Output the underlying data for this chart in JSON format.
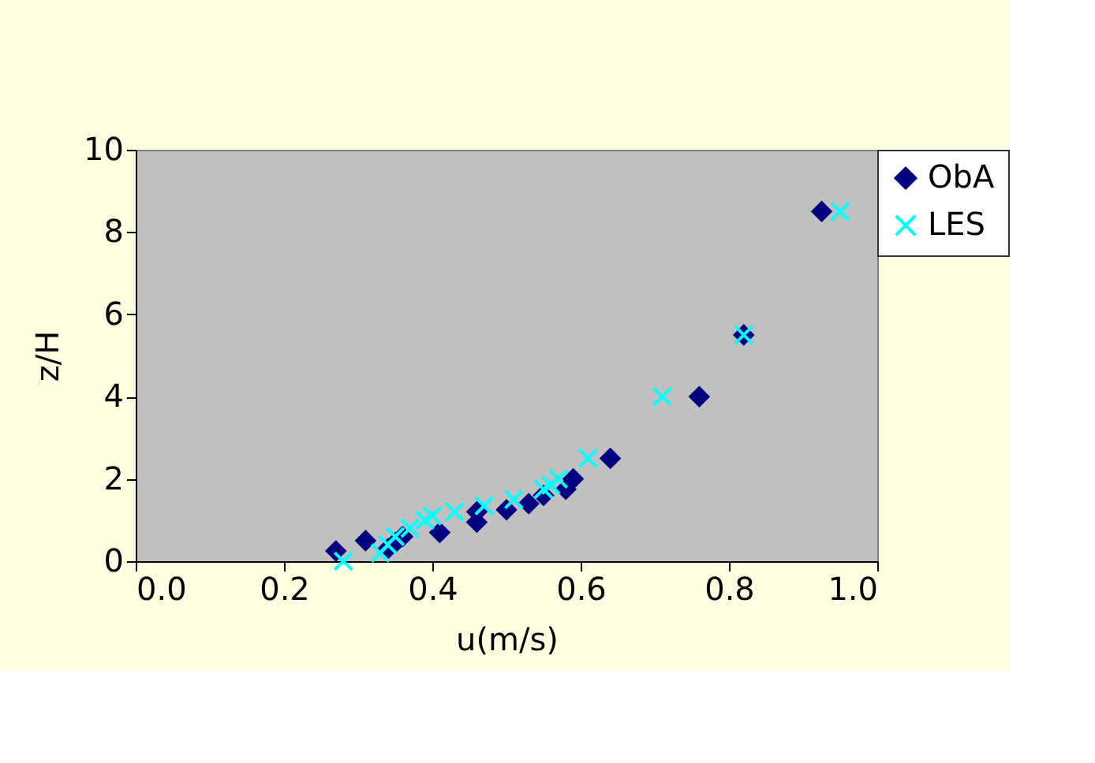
{
  "chart_data": {
    "type": "scatter",
    "xlabel": "u(m/s)",
    "ylabel": "z/H",
    "xlim": [
      0,
      1
    ],
    "xticks": [
      {
        "value": 0,
        "label": "0.0"
      },
      0.2,
      0.4,
      0.6,
      0.8,
      {
        "value": 1,
        "label": "1.0"
      }
    ],
    "ylim": [
      0,
      10
    ],
    "yticks": [
      0,
      2,
      4,
      6,
      8,
      10
    ],
    "grid": false,
    "legend": "right",
    "series": [
      {
        "name": "ObA",
        "color": "#000080",
        "marker": "diamond",
        "x": [
          0.27,
          0.31,
          0.34,
          0.35,
          0.36,
          0.41,
          0.46,
          0.46,
          0.5,
          0.53,
          0.55,
          0.58,
          0.59,
          0.64,
          0.76,
          0.82,
          0.925
        ],
        "values": [
          0.25,
          0.5,
          0.3,
          0.45,
          0.6,
          0.7,
          0.95,
          1.2,
          1.25,
          1.4,
          1.6,
          1.75,
          2.0,
          2.5,
          4.0,
          5.5,
          8.5
        ]
      },
      {
        "name": "LES",
        "color": "#00ffff",
        "marker": "cross",
        "x": [
          0.28,
          0.33,
          0.34,
          0.35,
          0.37,
          0.39,
          0.4,
          0.43,
          0.47,
          0.51,
          0.55,
          0.56,
          0.57,
          0.61,
          0.71,
          0.82,
          0.95
        ],
        "values": [
          0.0,
          0.2,
          0.4,
          0.6,
          0.8,
          1.0,
          1.1,
          1.2,
          1.35,
          1.5,
          1.75,
          1.85,
          2.0,
          2.5,
          4.0,
          5.5,
          8.5
        ]
      }
    ]
  }
}
